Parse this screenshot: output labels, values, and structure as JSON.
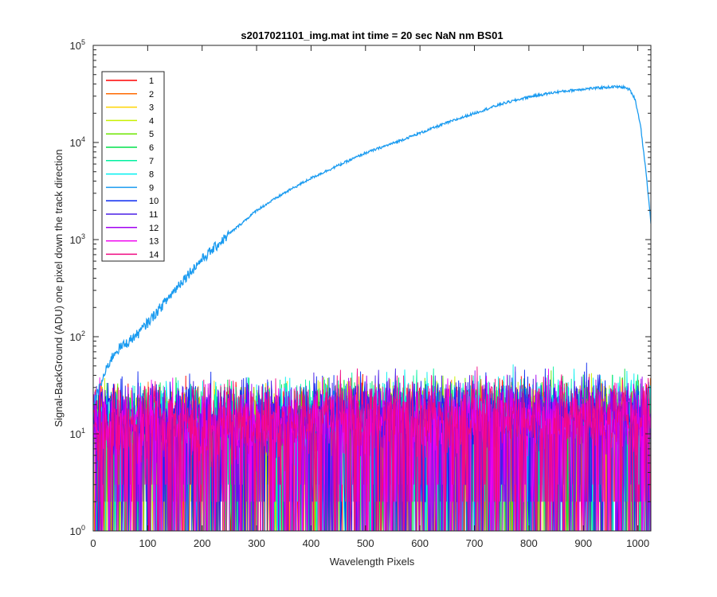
{
  "chart_data": {
    "type": "line",
    "title": "s2017021101_img.mat int time = 20 sec  NaN nm BS01",
    "xlabel": "Wavelength Pixels",
    "ylabel": "Signal-BackGround (ADU) one pixel down the track direction",
    "xlim": [
      0,
      1024
    ],
    "ylim": [
      1,
      100000
    ],
    "yscale": "log",
    "grid": false,
    "legend_location": "top-left",
    "x_ticks": [
      "0",
      "100",
      "200",
      "300",
      "400",
      "500",
      "600",
      "700",
      "800",
      "900",
      "1000"
    ],
    "y_ticks": [
      {
        "base": "10",
        "exp": "0"
      },
      {
        "base": "10",
        "exp": "1"
      },
      {
        "base": "10",
        "exp": "2"
      },
      {
        "base": "10",
        "exp": "3"
      },
      {
        "base": "10",
        "exp": "4"
      },
      {
        "base": "10",
        "exp": "5"
      }
    ],
    "series": [
      {
        "name": "1",
        "color": "#ff0000",
        "kind": "noise",
        "approx_level": 12
      },
      {
        "name": "2",
        "color": "#ff6a00",
        "kind": "noise",
        "approx_level": 12
      },
      {
        "name": "3",
        "color": "#ffd400",
        "kind": "noise",
        "approx_level": 12
      },
      {
        "name": "4",
        "color": "#c8f000",
        "kind": "noise",
        "approx_level": 12
      },
      {
        "name": "5",
        "color": "#6ee600",
        "kind": "noise",
        "approx_level": 13
      },
      {
        "name": "6",
        "color": "#00e04b",
        "kind": "noise",
        "approx_level": 13
      },
      {
        "name": "7",
        "color": "#00f0a0",
        "kind": "noise",
        "approx_level": 14
      },
      {
        "name": "8",
        "color": "#00f0f0",
        "kind": "noise",
        "approx_level": 15
      },
      {
        "name": "9",
        "color": "#1a9bf0",
        "kind": "signal",
        "x": [
          0,
          10,
          20,
          30,
          40,
          50,
          60,
          70,
          80,
          90,
          100,
          120,
          140,
          160,
          180,
          200,
          220,
          250,
          280,
          300,
          350,
          400,
          450,
          500,
          550,
          600,
          650,
          700,
          750,
          800,
          850,
          900,
          940,
          960,
          975,
          985,
          995,
          1005,
          1015,
          1024
        ],
        "values": [
          20,
          28,
          40,
          55,
          70,
          78,
          85,
          95,
          105,
          120,
          140,
          190,
          260,
          360,
          480,
          630,
          800,
          1150,
          1600,
          2000,
          3000,
          4300,
          5800,
          7800,
          9800,
          12500,
          16000,
          20000,
          25000,
          29500,
          33000,
          35500,
          37000,
          37500,
          37000,
          35000,
          28000,
          15000,
          5000,
          1500
        ]
      },
      {
        "name": "10",
        "color": "#0a28f0",
        "kind": "noise",
        "approx_level": 15
      },
      {
        "name": "11",
        "color": "#4a1ee6",
        "kind": "noise",
        "approx_level": 14
      },
      {
        "name": "12",
        "color": "#a000f0",
        "kind": "noise",
        "approx_level": 13
      },
      {
        "name": "13",
        "color": "#f000f0",
        "kind": "noise",
        "approx_level": 13
      },
      {
        "name": "14",
        "color": "#f00a82",
        "kind": "noise",
        "approx_level": 14
      }
    ]
  }
}
